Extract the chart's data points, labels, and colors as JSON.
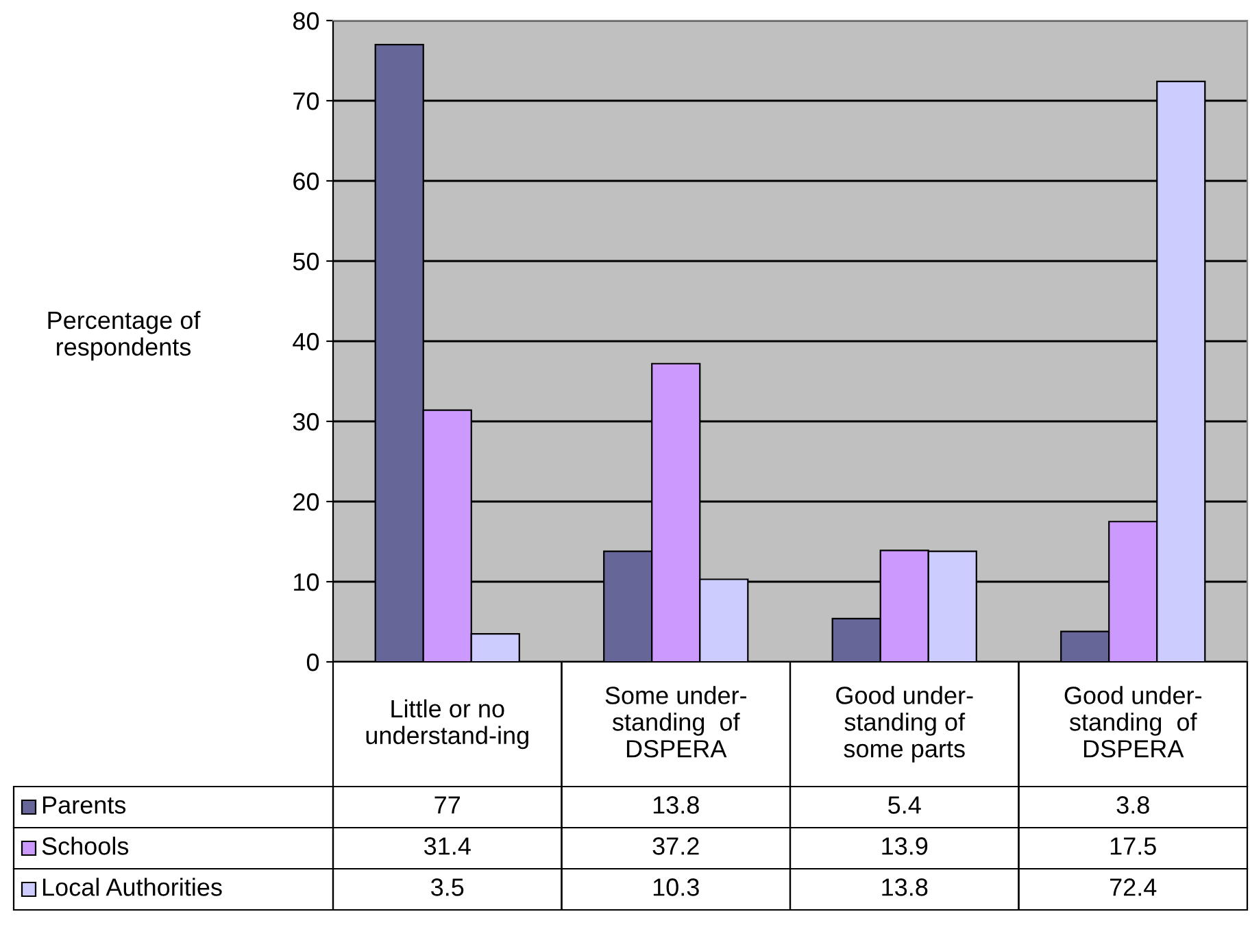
{
  "chart_data": {
    "type": "bar",
    "ylabel": "Percentage of\nrespondents",
    "categories": [
      "Little or no\nunderstand-ing",
      "Some under-\nstanding  of\nDSPERA",
      "Good under-\nstanding of\nsome parts",
      "Good under-\nstanding  of\nDSPERA"
    ],
    "series": [
      {
        "name": "Parents",
        "color": "#666699",
        "values": [
          77,
          13.8,
          5.4,
          3.8
        ]
      },
      {
        "name": "Schools",
        "color": "#cc99ff",
        "values": [
          31.4,
          37.2,
          13.9,
          17.5
        ]
      },
      {
        "name": "Local Authorities",
        "color": "#ccccff",
        "values": [
          3.5,
          10.3,
          13.8,
          72.4
        ]
      }
    ],
    "ylim": [
      0,
      80
    ],
    "yticks": [
      0,
      10,
      20,
      30,
      40,
      50,
      60,
      70,
      80
    ],
    "grid": "y",
    "legend": "bottom",
    "data_labels": true
  }
}
